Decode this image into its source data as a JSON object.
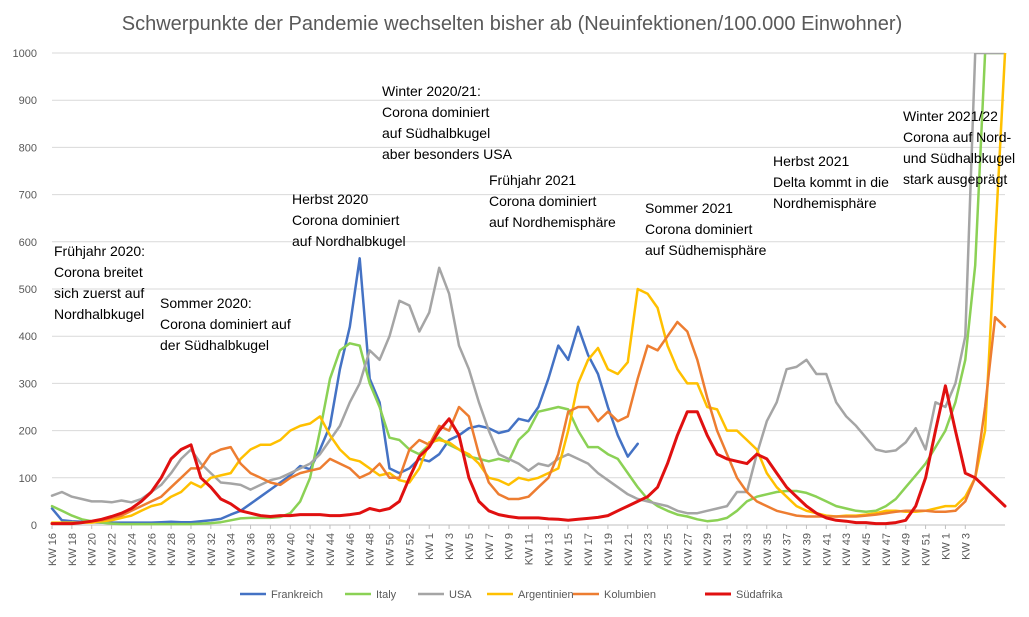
{
  "chart_data": {
    "type": "line",
    "title": "Schwerpunkte der Pandemie wechselten bisher ab (Neuinfektionen/100.000 Einwohner)",
    "xlabel": "",
    "ylabel": "",
    "ylim": [
      0,
      1000
    ],
    "yticks": [
      0,
      100,
      200,
      300,
      400,
      500,
      600,
      700,
      800,
      900,
      1000
    ],
    "grid": true,
    "legend_position": "bottom",
    "x_tick_labels": [
      "KW 16",
      "KW 18",
      "KW 20",
      "KW 22",
      "KW 24",
      "KW 26",
      "KW 28",
      "KW 30",
      "KW 32",
      "KW 34",
      "KW 36",
      "KW 38",
      "KW 40",
      "KW 42",
      "KW 44",
      "KW 46",
      "KW 48",
      "KW 50",
      "KW 52",
      "KW 1",
      "KW 3",
      "KW 5",
      "KW 7",
      "KW 9",
      "KW 11",
      "KW 13",
      "KW 15",
      "KW 17",
      "KW 19",
      "KW 21",
      "KW 23",
      "KW 25",
      "KW 27",
      "KW 29",
      "KW 31",
      "KW 33",
      "KW 35",
      "KW 37",
      "KW 39",
      "KW 41",
      "KW 43",
      "KW 45",
      "KW 47",
      "KW 49",
      "KW 51",
      "KW 1",
      "KW 3"
    ],
    "series": [
      {
        "name": "Frankreich",
        "color": "#4472c4",
        "values": [
          35,
          10,
          8,
          7,
          6,
          5,
          5,
          5,
          5,
          5,
          5,
          6,
          7,
          6,
          6,
          8,
          10,
          13,
          22,
          30,
          45,
          60,
          75,
          90,
          105,
          125,
          118,
          160,
          210,
          330,
          420,
          565,
          310,
          260,
          120,
          110,
          120,
          140,
          135,
          150,
          180,
          190,
          205,
          210,
          205,
          195,
          200,
          225,
          220,
          250,
          310,
          380,
          350,
          420,
          360,
          320,
          250,
          190,
          145,
          172,
          null,
          null,
          null,
          null,
          null,
          null,
          null,
          null,
          null,
          null,
          null,
          null,
          null,
          null,
          null,
          null,
          null,
          null,
          null,
          null,
          null,
          null,
          null,
          null,
          null,
          null,
          null,
          null,
          null,
          null,
          null,
          null,
          null,
          null,
          null,
          null,
          null
        ]
      },
      {
        "name": "Italy",
        "color": "#8bd155",
        "values": [
          40,
          30,
          20,
          12,
          8,
          5,
          3,
          2,
          2,
          2,
          2,
          2,
          2,
          2,
          2,
          3,
          4,
          6,
          10,
          14,
          15,
          15,
          15,
          17,
          25,
          50,
          100,
          200,
          310,
          370,
          385,
          380,
          300,
          250,
          185,
          180,
          160,
          150,
          170,
          185,
          170,
          160,
          145,
          140,
          135,
          140,
          135,
          180,
          200,
          240,
          245,
          250,
          245,
          200,
          165,
          165,
          150,
          140,
          110,
          80,
          55,
          40,
          30,
          22,
          18,
          12,
          8,
          10,
          15,
          30,
          50,
          60,
          65,
          70,
          72,
          72,
          68,
          60,
          50,
          40,
          35,
          30,
          28,
          30,
          40,
          55,
          80,
          105,
          130,
          165,
          200,
          260,
          350,
          550,
          1000,
          1000,
          1000
        ]
      },
      {
        "name": "USA",
        "color": "#a5a5a5",
        "values": [
          62,
          70,
          60,
          55,
          50,
          50,
          48,
          52,
          48,
          55,
          70,
          85,
          110,
          140,
          160,
          130,
          110,
          90,
          88,
          85,
          75,
          85,
          95,
          100,
          110,
          120,
          130,
          150,
          180,
          210,
          260,
          300,
          370,
          350,
          400,
          475,
          465,
          410,
          450,
          545,
          490,
          380,
          330,
          260,
          200,
          150,
          140,
          130,
          115,
          130,
          125,
          140,
          150,
          140,
          130,
          110,
          95,
          80,
          65,
          55,
          50,
          45,
          40,
          30,
          25,
          25,
          30,
          35,
          40,
          70,
          70,
          150,
          220,
          260,
          330,
          335,
          350,
          320,
          320,
          260,
          230,
          210,
          185,
          160,
          155,
          158,
          175,
          205,
          160,
          260,
          250,
          300,
          400,
          1000,
          1000,
          1000,
          1000
        ]
      },
      {
        "name": "Argentinien",
        "color": "#ffc000",
        "values": [
          5,
          5,
          5,
          5,
          5,
          8,
          10,
          15,
          20,
          30,
          40,
          45,
          60,
          70,
          90,
          80,
          100,
          105,
          110,
          140,
          160,
          170,
          170,
          180,
          200,
          210,
          215,
          230,
          190,
          160,
          140,
          135,
          120,
          105,
          110,
          95,
          90,
          120,
          175,
          180,
          175,
          160,
          150,
          130,
          100,
          95,
          85,
          100,
          95,
          100,
          110,
          120,
          200,
          300,
          350,
          375,
          330,
          320,
          345,
          500,
          490,
          460,
          380,
          330,
          300,
          300,
          250,
          245,
          200,
          200,
          180,
          160,
          110,
          80,
          60,
          40,
          30,
          25,
          20,
          18,
          20,
          20,
          22,
          25,
          30,
          30,
          28,
          28,
          30,
          35,
          40,
          40,
          60,
          100,
          200,
          600,
          1000
        ]
      },
      {
        "name": "Kolumbien",
        "color": "#ed7d31",
        "values": [
          3,
          3,
          3,
          5,
          8,
          10,
          15,
          20,
          30,
          40,
          50,
          60,
          80,
          100,
          120,
          120,
          150,
          160,
          165,
          130,
          110,
          100,
          90,
          85,
          100,
          110,
          115,
          120,
          140,
          130,
          120,
          100,
          110,
          130,
          100,
          100,
          160,
          180,
          170,
          210,
          200,
          250,
          230,
          150,
          90,
          65,
          55,
          55,
          60,
          80,
          100,
          150,
          240,
          250,
          250,
          220,
          240,
          220,
          230,
          310,
          380,
          370,
          400,
          430,
          410,
          350,
          270,
          200,
          150,
          100,
          70,
          50,
          40,
          30,
          25,
          20,
          18,
          18,
          18,
          18,
          18,
          18,
          20,
          22,
          25,
          28,
          30,
          30,
          30,
          28,
          28,
          30,
          50,
          100,
          250,
          440,
          420
        ]
      },
      {
        "name": "Südafrika",
        "color": "#e01010",
        "values": [
          3,
          3,
          3,
          5,
          8,
          12,
          18,
          25,
          35,
          50,
          70,
          100,
          140,
          160,
          170,
          100,
          80,
          55,
          45,
          30,
          25,
          20,
          18,
          20,
          20,
          22,
          22,
          22,
          20,
          20,
          22,
          25,
          35,
          30,
          35,
          50,
          100,
          145,
          165,
          200,
          225,
          190,
          100,
          50,
          30,
          22,
          18,
          15,
          15,
          15,
          13,
          12,
          10,
          12,
          14,
          16,
          20,
          30,
          40,
          50,
          60,
          80,
          130,
          190,
          240,
          240,
          190,
          150,
          140,
          135,
          130,
          150,
          140,
          110,
          80,
          60,
          40,
          25,
          15,
          10,
          8,
          5,
          5,
          3,
          3,
          5,
          10,
          40,
          100,
          200,
          295,
          200,
          110,
          100,
          80,
          60,
          40
        ]
      }
    ],
    "annotations": [
      {
        "lines": [
          "Frühjahr 2020:",
          "Corona breitet",
          "sich zuerst auf",
          "Nordhalbkugel"
        ]
      },
      {
        "lines": [
          "Sommer 2020:",
          "Corona dominiert auf",
          "der Südhalbkugel"
        ]
      },
      {
        "lines": [
          "Herbst 2020",
          "Corona dominiert",
          "auf Nordhalbkugel"
        ]
      },
      {
        "lines": [
          "Winter 2020/21:",
          "Corona dominiert",
          "auf Südhalbkugel",
          "aber besonders USA"
        ]
      },
      {
        "lines": [
          "Frühjahr 2021",
          "Corona dominiert",
          "auf Nordhemisphäre"
        ]
      },
      {
        "lines": [
          "Sommer 2021",
          "Corona dominiert",
          "auf Südhemisphäre"
        ]
      },
      {
        "lines": [
          "Herbst 2021",
          "Delta kommt in die",
          "Nordhemisphäre"
        ]
      },
      {
        "lines": [
          "Winter 2021/22",
          "Corona auf Nord-",
          "und Südhalbkugel",
          "stark ausgeprägt"
        ]
      }
    ]
  }
}
